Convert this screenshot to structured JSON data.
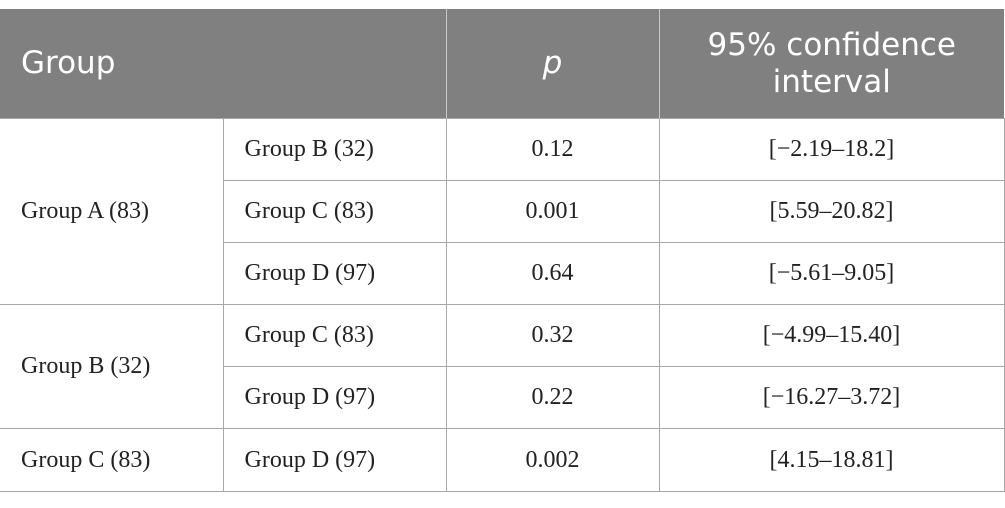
{
  "table": {
    "headers": {
      "group": "Group",
      "p": "p",
      "ci_line1": "95% confidence",
      "ci_line2": "interval"
    },
    "sections": [
      {
        "group": "Group A (83)",
        "rows": [
          {
            "compare": "Group B (32)",
            "p": "0.12",
            "ci": "[−2.19–18.2]"
          },
          {
            "compare": "Group C (83)",
            "p": "0.001",
            "ci": "[5.59–20.82]"
          },
          {
            "compare": "Group D (97)",
            "p": "0.64",
            "ci": "[−5.61–9.05]"
          }
        ]
      },
      {
        "group": "Group B (32)",
        "rows": [
          {
            "compare": "Group C (83)",
            "p": "0.32",
            "ci": "[−4.99–15.40]"
          },
          {
            "compare": "Group D (97)",
            "p": "0.22",
            "ci": "[−16.27–3.72]"
          }
        ]
      },
      {
        "group": "Group C (83)",
        "rows": [
          {
            "compare": "Group D (97)",
            "p": "0.002",
            "ci": "[4.15–18.81]"
          }
        ]
      }
    ]
  },
  "colors": {
    "header_bg": "#808080",
    "header_text": "#ffffff",
    "border": "#a8a8a8"
  }
}
